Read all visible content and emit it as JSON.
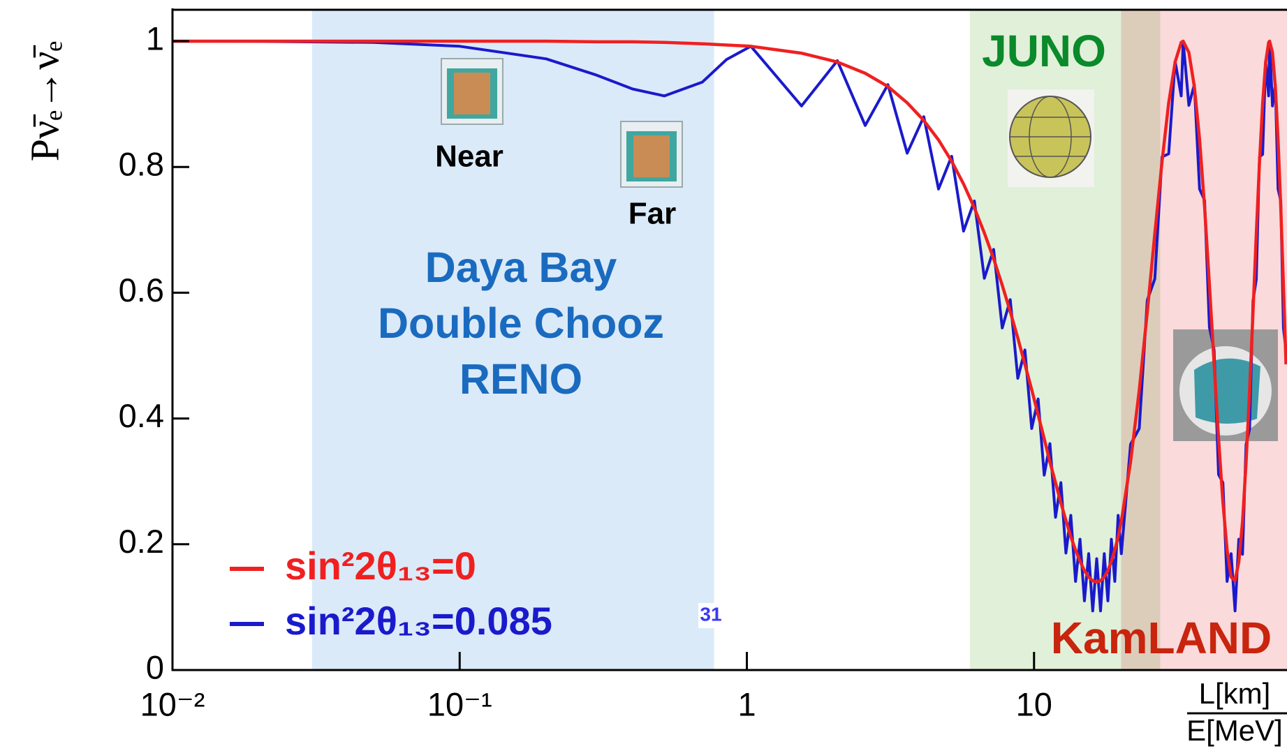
{
  "chart_data": {
    "type": "line",
    "ylabel": "Pν̄ₑ→ν̄ₑ",
    "xlabel": {
      "numerator": "L[km]",
      "denominator": "E[MeV]"
    },
    "log_x": true,
    "xlim": [
      0.01,
      76
    ],
    "ylim": [
      0,
      1.05
    ],
    "xticks": [
      {
        "value": 0.01,
        "label": "10⁻²"
      },
      {
        "value": 0.1,
        "label": "10⁻¹"
      },
      1,
      10
    ],
    "yticks": [
      0,
      0.2,
      0.4,
      0.6,
      0.8,
      1
    ],
    "legend": "lower left",
    "regions": [
      {
        "xlim": [
          0.0306,
          0.769
        ],
        "color": "#dbeaf8",
        "label_color": "#1a6bbf",
        "labels": [
          "Daya Bay",
          "Double Chooz",
          "RENO"
        ]
      },
      {
        "xlim": [
          5.98,
          27.5
        ],
        "color": "#e1f0d9",
        "label_color": "#0a8a2a",
        "labels": [
          "JUNO"
        ]
      },
      {
        "xlim": [
          20.1,
          76
        ],
        "color": "#fadadb",
        "label_color": "#c8240e",
        "labels": [
          "KamLAND"
        ]
      }
    ],
    "detector_labels": [
      "Near",
      "Far"
    ],
    "annotation": "31",
    "x": [
      0.01,
      0.02,
      0.05,
      0.1,
      0.2,
      0.3,
      0.4,
      0.5165,
      0.7,
      0.85,
      1.033,
      1.55,
      2.066,
      2.583,
      3.099,
      3.616,
      4.132,
      4.649,
      5.165,
      5.682,
      6.198,
      6.715,
      7.231,
      7.748,
      8.264,
      8.781,
      9.297,
      9.814,
      10.33,
      10.85,
      11.36,
      11.88,
      12.4,
      12.91,
      13.43,
      13.95,
      14.46,
      14.98,
      15.5,
      16.01,
      16.53,
      17.04,
      17.56,
      18.08,
      18.59,
      19.11,
      19.63,
      20.14,
      21.69,
      23.24,
      24.79,
      26.34,
      27.89,
      29.44,
      30.99,
      32.54,
      33.06,
      34.61,
      36.16,
      37.7,
      39.25,
      40.8,
      42.35,
      43.9,
      45.45,
      47.0,
      48.55,
      50.1,
      51.65,
      53.2,
      54.75,
      56.3,
      57.85,
      59.4,
      60.95,
      62.5,
      64.05,
      65.6,
      66.11,
      67.66,
      69.21,
      70.76,
      72.31,
      73.86,
      75.41
    ],
    "series": [
      {
        "name": "sin²2θ₁₃=0.085",
        "color": "#1a1acc",
        "values": [
          0.9999,
          0.9997,
          0.998,
          0.992,
          0.972,
          0.946,
          0.924,
          0.913,
          0.935,
          0.971,
          0.992,
          0.897,
          0.969,
          0.866,
          0.931,
          0.822,
          0.88,
          0.765,
          0.817,
          0.698,
          0.746,
          0.623,
          0.669,
          0.544,
          0.589,
          0.464,
          0.509,
          0.384,
          0.431,
          0.31,
          0.36,
          0.243,
          0.298,
          0.186,
          0.246,
          0.141,
          0.208,
          0.11,
          0.185,
          0.094,
          0.177,
          0.094,
          0.185,
          0.11,
          0.208,
          0.141,
          0.246,
          0.185,
          0.359,
          0.384,
          0.588,
          0.622,
          0.816,
          0.821,
          0.968,
          0.913,
          1.0,
          0.898,
          0.931,
          0.765,
          0.747,
          0.545,
          0.509,
          0.311,
          0.298,
          0.141,
          0.185,
          0.094,
          0.208,
          0.184,
          0.359,
          0.383,
          0.587,
          0.621,
          0.816,
          0.82,
          0.968,
          0.913,
          1.0,
          0.897,
          0.931,
          0.765,
          0.746,
          0.544,
          0.509
        ]
      },
      {
        "name": "sin²2θ₁₃=0",
        "color": "#f02020",
        "values": [
          1.0,
          1.0,
          1.0,
          1.0,
          1.0,
          0.999,
          0.999,
          0.998,
          0.996,
          0.994,
          0.992,
          0.981,
          0.967,
          0.949,
          0.928,
          0.902,
          0.874,
          0.843,
          0.809,
          0.773,
          0.735,
          0.695,
          0.654,
          0.612,
          0.57,
          0.528,
          0.486,
          0.446,
          0.406,
          0.368,
          0.331,
          0.298,
          0.266,
          0.238,
          0.212,
          0.191,
          0.173,
          0.158,
          0.148,
          0.142,
          0.14,
          0.142,
          0.148,
          0.158,
          0.173,
          0.191,
          0.212,
          0.237,
          0.331,
          0.445,
          0.569,
          0.694,
          0.808,
          0.902,
          0.967,
          0.998,
          1.0,
          0.982,
          0.928,
          0.844,
          0.736,
          0.613,
          0.487,
          0.368,
          0.267,
          0.191,
          0.148,
          0.142,
          0.172,
          0.236,
          0.33,
          0.444,
          0.568,
          0.693,
          0.807,
          0.901,
          0.966,
          0.998,
          1.0,
          0.982,
          0.928,
          0.843,
          0.735,
          0.612,
          0.486
        ]
      }
    ]
  }
}
